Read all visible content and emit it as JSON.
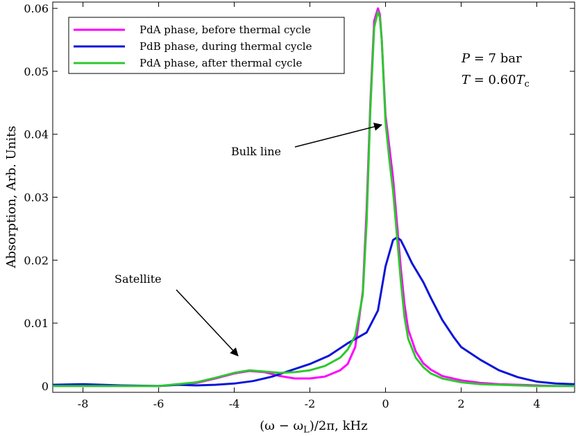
{
  "chart_data": {
    "type": "line",
    "title": "",
    "xlabel": "(ω − ωL)/2π, kHz",
    "ylabel": "Absorption, Arb. Units",
    "xlim": [
      -8.8,
      5.0
    ],
    "ylim": [
      -0.001,
      0.061
    ],
    "xticks": [
      -8,
      -6,
      -4,
      -2,
      0,
      2,
      4
    ],
    "xtick_labels": [
      "-8",
      "-6",
      "-4",
      "-2",
      "0",
      "2",
      "4"
    ],
    "yticks": [
      0,
      0.01,
      0.02,
      0.03,
      0.04,
      0.05,
      0.06
    ],
    "ytick_labels": [
      "0",
      "0.01",
      "0.02",
      "0.03",
      "0.04",
      "0.05",
      "0.06"
    ],
    "grid": false,
    "legend_position": "top-left",
    "series": [
      {
        "name": "PdA phase, before thermal cycle",
        "color": "#ff00ff",
        "x": [
          -8.8,
          -8,
          -7,
          -6,
          -5.5,
          -5,
          -4.5,
          -4,
          -3.6,
          -3.2,
          -2.8,
          -2.4,
          -2,
          -1.6,
          -1.2,
          -1,
          -0.8,
          -0.6,
          -0.5,
          -0.4,
          -0.3,
          -0.2,
          -0.15,
          -0.1,
          0,
          0.1,
          0.2,
          0.3,
          0.4,
          0.5,
          0.6,
          0.8,
          1,
          1.2,
          1.5,
          2,
          2.5,
          3,
          3.5,
          4,
          4.5,
          5
        ],
        "y": [
          0,
          0,
          0,
          0,
          0.0002,
          0.0005,
          0.0012,
          0.002,
          0.0024,
          0.0022,
          0.0016,
          0.0012,
          0.0012,
          0.0015,
          0.0025,
          0.0035,
          0.0062,
          0.015,
          0.028,
          0.045,
          0.058,
          0.06,
          0.059,
          0.055,
          0.043,
          0.038,
          0.033,
          0.026,
          0.019,
          0.013,
          0.009,
          0.0055,
          0.0036,
          0.0026,
          0.0016,
          0.0009,
          0.0005,
          0.0003,
          0.0002,
          0.0001,
          0,
          0
        ]
      },
      {
        "name": "PdB phase, during thermal cycle",
        "color": "#0a14d8",
        "x": [
          -8.8,
          -8,
          -7,
          -6,
          -5.5,
          -5,
          -4.5,
          -4,
          -3.5,
          -3,
          -2.5,
          -2,
          -1.5,
          -1,
          -0.5,
          -0.2,
          0,
          0.2,
          0.3,
          0.4,
          0.5,
          0.7,
          1,
          1.2,
          1.5,
          1.8,
          2,
          2.5,
          3,
          3.5,
          4,
          4.5,
          5
        ],
        "y": [
          0.0002,
          0.0003,
          0.0001,
          0,
          0.0002,
          0.0001,
          0.0002,
          0.0004,
          0.0008,
          0.0015,
          0.0025,
          0.0035,
          0.0048,
          0.0068,
          0.0085,
          0.012,
          0.019,
          0.0232,
          0.0236,
          0.0232,
          0.022,
          0.0195,
          0.0165,
          0.014,
          0.0105,
          0.0078,
          0.0062,
          0.0042,
          0.0025,
          0.0014,
          0.0007,
          0.0004,
          0.0003
        ]
      },
      {
        "name": "PdA phase, after thermal cycle",
        "color": "#2dc82d",
        "x": [
          -8.8,
          -8,
          -7,
          -6,
          -5.5,
          -5,
          -4.5,
          -4,
          -3.6,
          -3.2,
          -2.8,
          -2.4,
          -2,
          -1.6,
          -1.2,
          -1,
          -0.8,
          -0.6,
          -0.5,
          -0.4,
          -0.3,
          -0.2,
          -0.15,
          -0.1,
          0,
          0.1,
          0.2,
          0.3,
          0.4,
          0.5,
          0.6,
          0.8,
          1,
          1.2,
          1.5,
          2,
          2.5,
          3,
          3.5,
          4,
          4.5,
          5
        ],
        "y": [
          0,
          0,
          0,
          0,
          0.0003,
          0.0006,
          0.0013,
          0.0021,
          0.0025,
          0.0023,
          0.0021,
          0.0022,
          0.0025,
          0.0032,
          0.0045,
          0.0058,
          0.008,
          0.0145,
          0.026,
          0.044,
          0.057,
          0.0595,
          0.0585,
          0.055,
          0.042,
          0.036,
          0.031,
          0.024,
          0.017,
          0.011,
          0.0075,
          0.0045,
          0.003,
          0.002,
          0.0012,
          0.0006,
          0.0003,
          0.0002,
          0.0001,
          0,
          0,
          0
        ]
      }
    ],
    "annotations": [
      {
        "text": "Bulk line",
        "arrow_to": [
          -0.1,
          0.0415
        ]
      },
      {
        "text": "Satellite",
        "arrow_to": [
          -3.9,
          0.0048
        ]
      }
    ],
    "params": {
      "line1": "P = 7 bar",
      "line2": "T = 0.60Tc"
    }
  }
}
